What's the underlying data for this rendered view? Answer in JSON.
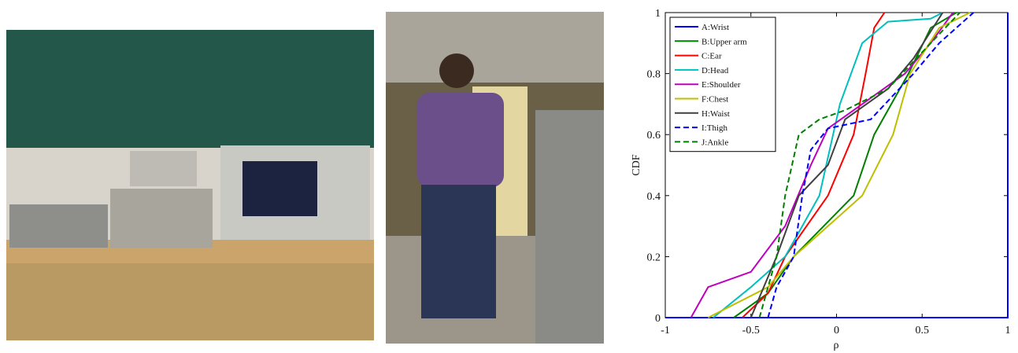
{
  "chart_data": {
    "type": "line",
    "xlabel": "ρ",
    "ylabel": "CDF",
    "xlim": [
      -1,
      1
    ],
    "xticks": [
      -1,
      -0.5,
      0,
      0.5,
      1
    ],
    "ylim": [
      0,
      1
    ],
    "yticks": [
      0,
      0.2,
      0.4,
      0.6,
      0.8,
      1
    ],
    "legend": "upper left",
    "series": [
      {
        "name": "A:Wrist",
        "color": "#0000ff",
        "dash": false,
        "x": [
          -1,
          1,
          1
        ],
        "values": [
          0,
          0,
          1
        ]
      },
      {
        "name": "B:Upper arm",
        "color": "#008000",
        "dash": false,
        "x": [
          -0.6,
          -0.4,
          -0.25,
          0.1,
          0.22,
          0.42,
          0.55,
          0.7
        ],
        "values": [
          0,
          0.08,
          0.2,
          0.4,
          0.6,
          0.8,
          0.95,
          1
        ]
      },
      {
        "name": "C:Ear",
        "color": "#ff0000",
        "dash": false,
        "x": [
          -0.55,
          -0.4,
          -0.3,
          -0.05,
          0.1,
          0.17,
          0.22,
          0.28
        ],
        "values": [
          0,
          0.08,
          0.2,
          0.4,
          0.6,
          0.8,
          0.95,
          1
        ]
      },
      {
        "name": "D:Head",
        "color": "#00bfbf",
        "dash": false,
        "x": [
          -0.72,
          -0.5,
          -0.3,
          -0.1,
          0.02,
          0.15,
          0.3,
          0.55,
          0.62
        ],
        "values": [
          0,
          0.1,
          0.2,
          0.4,
          0.7,
          0.9,
          0.97,
          0.98,
          1
        ]
      },
      {
        "name": "E:Shoulder",
        "color": "#bf00bf",
        "dash": false,
        "x": [
          -0.85,
          -0.75,
          -0.5,
          -0.3,
          -0.15,
          -0.05,
          0.15,
          0.4,
          0.55,
          0.68
        ],
        "values": [
          0,
          0.1,
          0.15,
          0.3,
          0.5,
          0.62,
          0.7,
          0.8,
          0.9,
          1
        ]
      },
      {
        "name": "F:Chest",
        "color": "#bfbf00",
        "dash": false,
        "x": [
          -0.75,
          -0.4,
          -0.25,
          -0.05,
          0.15,
          0.33,
          0.43,
          0.6,
          0.78
        ],
        "values": [
          0,
          0.1,
          0.2,
          0.3,
          0.4,
          0.6,
          0.8,
          0.95,
          1
        ]
      },
      {
        "name": "H:Waist",
        "color": "#404040",
        "dash": false,
        "x": [
          -0.5,
          -0.35,
          -0.22,
          -0.05,
          0.05,
          0.3,
          0.45,
          0.62
        ],
        "values": [
          0,
          0.2,
          0.4,
          0.5,
          0.65,
          0.75,
          0.85,
          1
        ]
      },
      {
        "name": "I:Thigh",
        "color": "#0000ff",
        "dash": true,
        "x": [
          -0.4,
          -0.35,
          -0.25,
          -0.2,
          -0.15,
          -0.05,
          0.2,
          0.45,
          0.6,
          0.8
        ],
        "values": [
          0,
          0.1,
          0.2,
          0.4,
          0.55,
          0.62,
          0.65,
          0.8,
          0.9,
          1
        ]
      },
      {
        "name": "J:Ankle",
        "color": "#008000",
        "dash": true,
        "x": [
          -0.45,
          -0.35,
          -0.3,
          -0.22,
          -0.1,
          0.05,
          0.3,
          0.55,
          0.72
        ],
        "values": [
          0,
          0.2,
          0.4,
          0.6,
          0.65,
          0.68,
          0.75,
          0.9,
          1
        ]
      }
    ]
  }
}
